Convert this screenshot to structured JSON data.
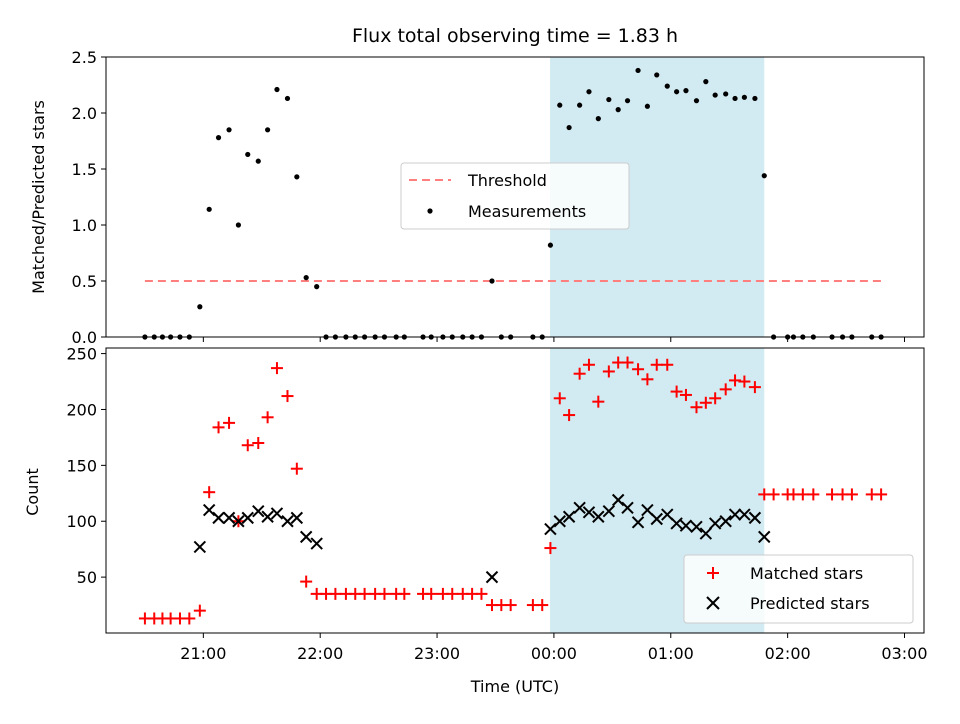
{
  "title": "Flux total observing time = 1.83 h",
  "colors": {
    "threshold": "#ff7f7f",
    "measurement": "#000000",
    "matched": "#ff0000",
    "predicted": "#000000",
    "observing_span": "#add8e6"
  },
  "chart_data": [
    {
      "type": "scatter",
      "panel": "top",
      "ylabel": "Matched/Predicted stars",
      "ylim": [
        0,
        2.5
      ],
      "yticks": [
        0.0,
        0.5,
        1.0,
        1.5,
        2.0,
        2.5
      ],
      "ytick_labels": [
        "0.0",
        "0.5",
        "1.0",
        "1.5",
        "2.0",
        "2.5"
      ],
      "x_range_hours": [
        20.167,
        27.167
      ],
      "observing_span_hours": [
        23.967,
        25.8
      ],
      "legend": {
        "placement": "center",
        "entries": [
          {
            "label": "Threshold",
            "kind": "dashed-line"
          },
          {
            "label": "Measurements",
            "kind": "dot"
          }
        ]
      },
      "threshold": {
        "name": "Threshold",
        "value": 0.5,
        "x_span_hours": [
          20.5,
          26.83
        ]
      },
      "series": [
        {
          "name": "Measurements",
          "points": [
            [
              20.5,
              0
            ],
            [
              20.58,
              0
            ],
            [
              20.65,
              0
            ],
            [
              20.72,
              0
            ],
            [
              20.8,
              0
            ],
            [
              20.88,
              0
            ],
            [
              20.97,
              0.27
            ],
            [
              21.05,
              1.14
            ],
            [
              21.13,
              1.78
            ],
            [
              21.22,
              1.85
            ],
            [
              21.3,
              1.0
            ],
            [
              21.38,
              1.63
            ],
            [
              21.47,
              1.57
            ],
            [
              21.55,
              1.85
            ],
            [
              21.63,
              2.21
            ],
            [
              21.72,
              2.13
            ],
            [
              21.8,
              1.43
            ],
            [
              21.88,
              0.53
            ],
            [
              21.97,
              0.45
            ],
            [
              22.05,
              0
            ],
            [
              22.13,
              0
            ],
            [
              22.22,
              0
            ],
            [
              22.3,
              0
            ],
            [
              22.38,
              0
            ],
            [
              22.47,
              0
            ],
            [
              22.55,
              0
            ],
            [
              22.65,
              0
            ],
            [
              22.72,
              0
            ],
            [
              22.88,
              0
            ],
            [
              22.95,
              0
            ],
            [
              23.05,
              0
            ],
            [
              23.13,
              0
            ],
            [
              23.22,
              0
            ],
            [
              23.3,
              0
            ],
            [
              23.38,
              0
            ],
            [
              23.47,
              0.5
            ],
            [
              23.55,
              0
            ],
            [
              23.63,
              0
            ],
            [
              23.82,
              0
            ],
            [
              23.9,
              0
            ],
            [
              23.97,
              0.82
            ],
            [
              24.05,
              2.07
            ],
            [
              24.13,
              1.87
            ],
            [
              24.22,
              2.07
            ],
            [
              24.3,
              2.19
            ],
            [
              24.38,
              1.95
            ],
            [
              24.47,
              2.12
            ],
            [
              24.55,
              2.03
            ],
            [
              24.63,
              2.11
            ],
            [
              24.72,
              2.38
            ],
            [
              24.8,
              2.06
            ],
            [
              24.88,
              2.34
            ],
            [
              24.97,
              2.24
            ],
            [
              25.05,
              2.19
            ],
            [
              25.13,
              2.2
            ],
            [
              25.22,
              2.11
            ],
            [
              25.3,
              2.28
            ],
            [
              25.38,
              2.16
            ],
            [
              25.47,
              2.17
            ],
            [
              25.55,
              2.13
            ],
            [
              25.63,
              2.14
            ],
            [
              25.72,
              2.13
            ],
            [
              25.8,
              1.44
            ],
            [
              25.88,
              0
            ],
            [
              26.0,
              0
            ],
            [
              26.05,
              0
            ],
            [
              26.13,
              0
            ],
            [
              26.22,
              0
            ],
            [
              26.38,
              0
            ],
            [
              26.47,
              0
            ],
            [
              26.55,
              0
            ],
            [
              26.72,
              0
            ],
            [
              26.8,
              0
            ]
          ]
        }
      ]
    },
    {
      "type": "scatter",
      "panel": "bottom",
      "xlabel": "Time (UTC)",
      "ylabel": "Count",
      "ylim": [
        0,
        255
      ],
      "yticks": [
        50,
        100,
        150,
        200,
        250
      ],
      "ytick_labels": [
        "50",
        "100",
        "150",
        "200",
        "250"
      ],
      "x_range_hours": [
        20.167,
        27.167
      ],
      "xticks_hours": [
        21,
        22,
        23,
        24,
        25,
        26,
        27
      ],
      "xtick_labels": [
        "21:00",
        "22:00",
        "23:00",
        "00:00",
        "01:00",
        "02:00",
        "03:00"
      ],
      "observing_span_hours": [
        23.967,
        25.8
      ],
      "legend": {
        "placement": "lower right",
        "entries": [
          {
            "label": "Matched stars",
            "kind": "plus"
          },
          {
            "label": "Predicted stars",
            "kind": "cross"
          }
        ]
      },
      "series": [
        {
          "name": "Matched stars",
          "points": [
            [
              20.5,
              13
            ],
            [
              20.58,
              13
            ],
            [
              20.65,
              13
            ],
            [
              20.72,
              13
            ],
            [
              20.8,
              13
            ],
            [
              20.88,
              13
            ],
            [
              20.97,
              20
            ],
            [
              21.05,
              126
            ],
            [
              21.13,
              184
            ],
            [
              21.22,
              188
            ],
            [
              21.3,
              100
            ],
            [
              21.38,
              168
            ],
            [
              21.47,
              170
            ],
            [
              21.55,
              193
            ],
            [
              21.63,
              237
            ],
            [
              21.72,
              212
            ],
            [
              21.8,
              147
            ],
            [
              21.88,
              46
            ],
            [
              21.97,
              35
            ],
            [
              22.05,
              35
            ],
            [
              22.13,
              35
            ],
            [
              22.22,
              35
            ],
            [
              22.3,
              35
            ],
            [
              22.38,
              35
            ],
            [
              22.47,
              35
            ],
            [
              22.55,
              35
            ],
            [
              22.65,
              35
            ],
            [
              22.72,
              35
            ],
            [
              22.88,
              35
            ],
            [
              22.95,
              35
            ],
            [
              23.05,
              35
            ],
            [
              23.13,
              35
            ],
            [
              23.22,
              35
            ],
            [
              23.3,
              35
            ],
            [
              23.38,
              35
            ],
            [
              23.47,
              25
            ],
            [
              23.55,
              25
            ],
            [
              23.63,
              25
            ],
            [
              23.82,
              25
            ],
            [
              23.9,
              25
            ],
            [
              23.97,
              76
            ],
            [
              24.05,
              210
            ],
            [
              24.13,
              195
            ],
            [
              24.22,
              232
            ],
            [
              24.3,
              240
            ],
            [
              24.38,
              207
            ],
            [
              24.47,
              234
            ],
            [
              24.55,
              242
            ],
            [
              24.63,
              242
            ],
            [
              24.72,
              236
            ],
            [
              24.8,
              227
            ],
            [
              24.88,
              240
            ],
            [
              24.97,
              240
            ],
            [
              25.05,
              216
            ],
            [
              25.13,
              213
            ],
            [
              25.22,
              202
            ],
            [
              25.3,
              206
            ],
            [
              25.38,
              210
            ],
            [
              25.47,
              218
            ],
            [
              25.55,
              226
            ],
            [
              25.63,
              225
            ],
            [
              25.72,
              220
            ],
            [
              25.8,
              124
            ],
            [
              25.88,
              124
            ],
            [
              26.0,
              124
            ],
            [
              26.05,
              124
            ],
            [
              26.13,
              124
            ],
            [
              26.22,
              124
            ],
            [
              26.38,
              124
            ],
            [
              26.47,
              124
            ],
            [
              26.55,
              124
            ],
            [
              26.72,
              124
            ],
            [
              26.8,
              124
            ]
          ]
        },
        {
          "name": "Predicted stars",
          "points": [
            [
              20.97,
              77
            ],
            [
              21.05,
              110
            ],
            [
              21.13,
              103
            ],
            [
              21.22,
              103
            ],
            [
              21.3,
              100
            ],
            [
              21.38,
              103
            ],
            [
              21.47,
              109
            ],
            [
              21.55,
              104
            ],
            [
              21.63,
              107
            ],
            [
              21.72,
              100
            ],
            [
              21.8,
              103
            ],
            [
              21.88,
              86
            ],
            [
              21.97,
              80
            ],
            [
              23.47,
              50
            ],
            [
              23.97,
              93
            ],
            [
              24.05,
              100
            ],
            [
              24.13,
              104
            ],
            [
              24.22,
              112
            ],
            [
              24.3,
              108
            ],
            [
              24.38,
              104
            ],
            [
              24.47,
              109
            ],
            [
              24.55,
              119
            ],
            [
              24.63,
              112
            ],
            [
              24.72,
              99
            ],
            [
              24.8,
              110
            ],
            [
              24.88,
              102
            ],
            [
              24.97,
              106
            ],
            [
              25.05,
              98
            ],
            [
              25.13,
              96
            ],
            [
              25.22,
              95
            ],
            [
              25.3,
              89
            ],
            [
              25.38,
              98
            ],
            [
              25.47,
              100
            ],
            [
              25.55,
              106
            ],
            [
              25.63,
              106
            ],
            [
              25.72,
              103
            ],
            [
              25.8,
              86
            ]
          ]
        }
      ]
    }
  ]
}
